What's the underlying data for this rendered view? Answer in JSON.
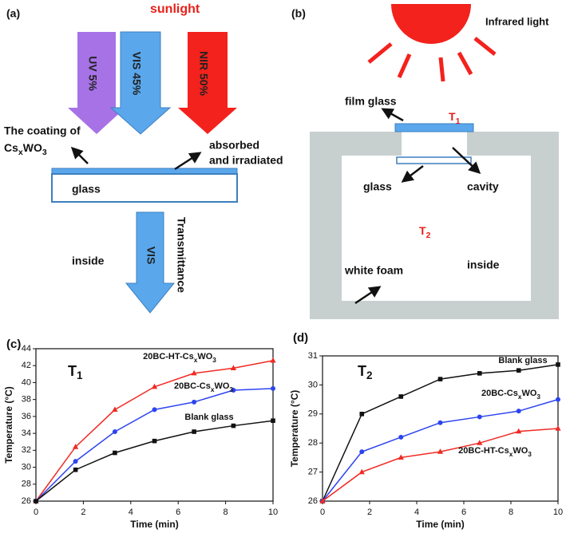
{
  "panel_a": {
    "label": "(a)",
    "source": "sunlight",
    "beams": [
      "UV 5%",
      "VIS 45%",
      "NIR 50%"
    ],
    "film_label": [
      "The coating of",
      "CsxWO3"
    ],
    "glass": "glass",
    "absorbed": [
      "absorbed",
      "and irradiated"
    ],
    "transmitted": "VIS",
    "transmittance": "Transmittance",
    "inside": "inside"
  },
  "panel_b": {
    "label": "(b)",
    "source": "Infrared light",
    "film_glass": "film glass",
    "t1": "T1",
    "glass": "glass",
    "cavity": "cavity",
    "t2": "T2",
    "foam": "white foam",
    "inside": "inside"
  },
  "chart_data": [
    {
      "type": "line",
      "panel_label": "(c)",
      "annotation": "T1",
      "x": [
        0,
        1.67,
        3.33,
        5,
        6.67,
        8.33,
        10
      ],
      "xlim": [
        0,
        10
      ],
      "xticks": [
        0,
        2,
        4,
        6,
        8,
        10
      ],
      "ylim": [
        26,
        44
      ],
      "yticks": [
        26,
        28,
        30,
        32,
        34,
        36,
        38,
        40,
        42,
        44
      ],
      "xlabel": "Time (min)",
      "ylabel": "Temperature (°C)",
      "series": [
        {
          "name": "20BC-HT-CsxWO3",
          "color": "#f02a23",
          "marker": "triangle",
          "values": [
            26,
            32.4,
            36.8,
            39.5,
            41.1,
            41.7,
            42.6
          ]
        },
        {
          "name": "20BC-CsxWO3",
          "color": "#2d44f0",
          "marker": "circle",
          "values": [
            26,
            30.7,
            34.2,
            36.8,
            37.7,
            39.1,
            39.3
          ]
        },
        {
          "name": "Blank glass",
          "color": "#111111",
          "marker": "square",
          "values": [
            26,
            29.7,
            31.7,
            33.1,
            34.2,
            34.9,
            35.5
          ]
        }
      ]
    },
    {
      "type": "line",
      "panel_label": "(d)",
      "annotation": "T2",
      "x": [
        0,
        1.67,
        3.33,
        5,
        6.67,
        8.33,
        10
      ],
      "xlim": [
        0,
        10
      ],
      "xticks": [
        0,
        2,
        4,
        6,
        8,
        10
      ],
      "ylim": [
        26,
        31
      ],
      "yticks": [
        26,
        27,
        28,
        29,
        30,
        31
      ],
      "xlabel": "Time (min)",
      "ylabel": "Temperature (°C)",
      "series": [
        {
          "name": "Blank glass",
          "color": "#111111",
          "marker": "square",
          "values": [
            26,
            29.0,
            29.6,
            30.2,
            30.4,
            30.5,
            30.7
          ]
        },
        {
          "name": "20BC-CsxWO3",
          "color": "#2d44f0",
          "marker": "circle",
          "values": [
            26,
            27.7,
            28.2,
            28.7,
            28.9,
            29.1,
            29.5
          ]
        },
        {
          "name": "20BC-HT-CsxWO3",
          "color": "#f02a23",
          "marker": "triangle",
          "values": [
            26,
            27.0,
            27.5,
            27.7,
            28.0,
            28.4,
            28.5
          ]
        }
      ]
    }
  ]
}
